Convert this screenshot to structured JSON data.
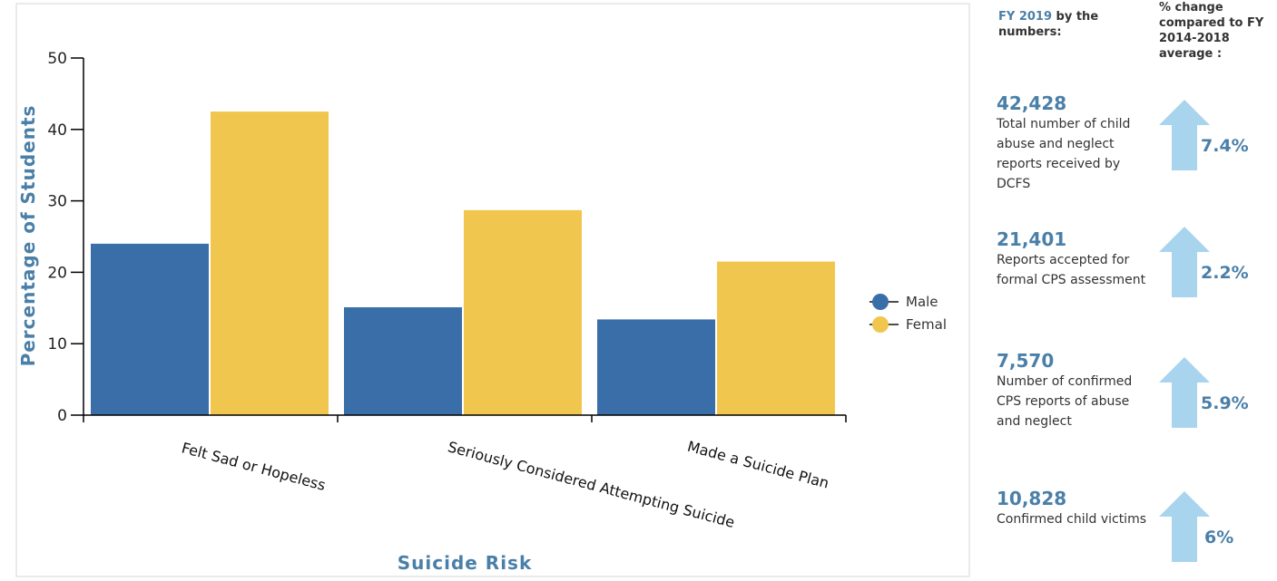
{
  "chart_data": {
    "type": "bar",
    "title": "",
    "xlabel": "Suicide Risk",
    "ylabel": "Percentage of Students",
    "categories": [
      "Felt Sad or Hopeless",
      "Seriously Considered Attempting Suicide",
      "Made a Suicide Plan"
    ],
    "series": [
      {
        "name": "Male",
        "values": [
          24.0,
          15.1,
          13.4
        ],
        "color": "#3a6ea8"
      },
      {
        "name": "Female",
        "values": [
          42.5,
          28.7,
          21.5
        ],
        "color": "#f1c64f"
      }
    ],
    "ylim": [
      0,
      50
    ],
    "yticks": [
      0,
      10,
      20,
      30,
      40,
      50
    ],
    "legend_position": "right",
    "legend_labels": [
      "Male",
      "Femal"
    ],
    "grid": false
  },
  "stats_panel": {
    "header_left_accent": "FY 2019",
    "header_left_rest": " by the numbers:",
    "header_right": "% change compared to FY 2014-2018 average :",
    "arrow_color": "#a9d4ee",
    "items": [
      {
        "value": "42,428",
        "description": "Total number of child abuse and neglect reports received by DCFS",
        "change": "7.4%"
      },
      {
        "value": "21,401",
        "description": "Reports accepted for formal CPS assessment",
        "change": "2.2%"
      },
      {
        "value": "7,570",
        "description": "Number of confirmed CPS reports of abuse and neglect",
        "change": "5.9%"
      },
      {
        "value": "10,828",
        "description": "Confirmed child victims",
        "change": "6%"
      }
    ]
  }
}
